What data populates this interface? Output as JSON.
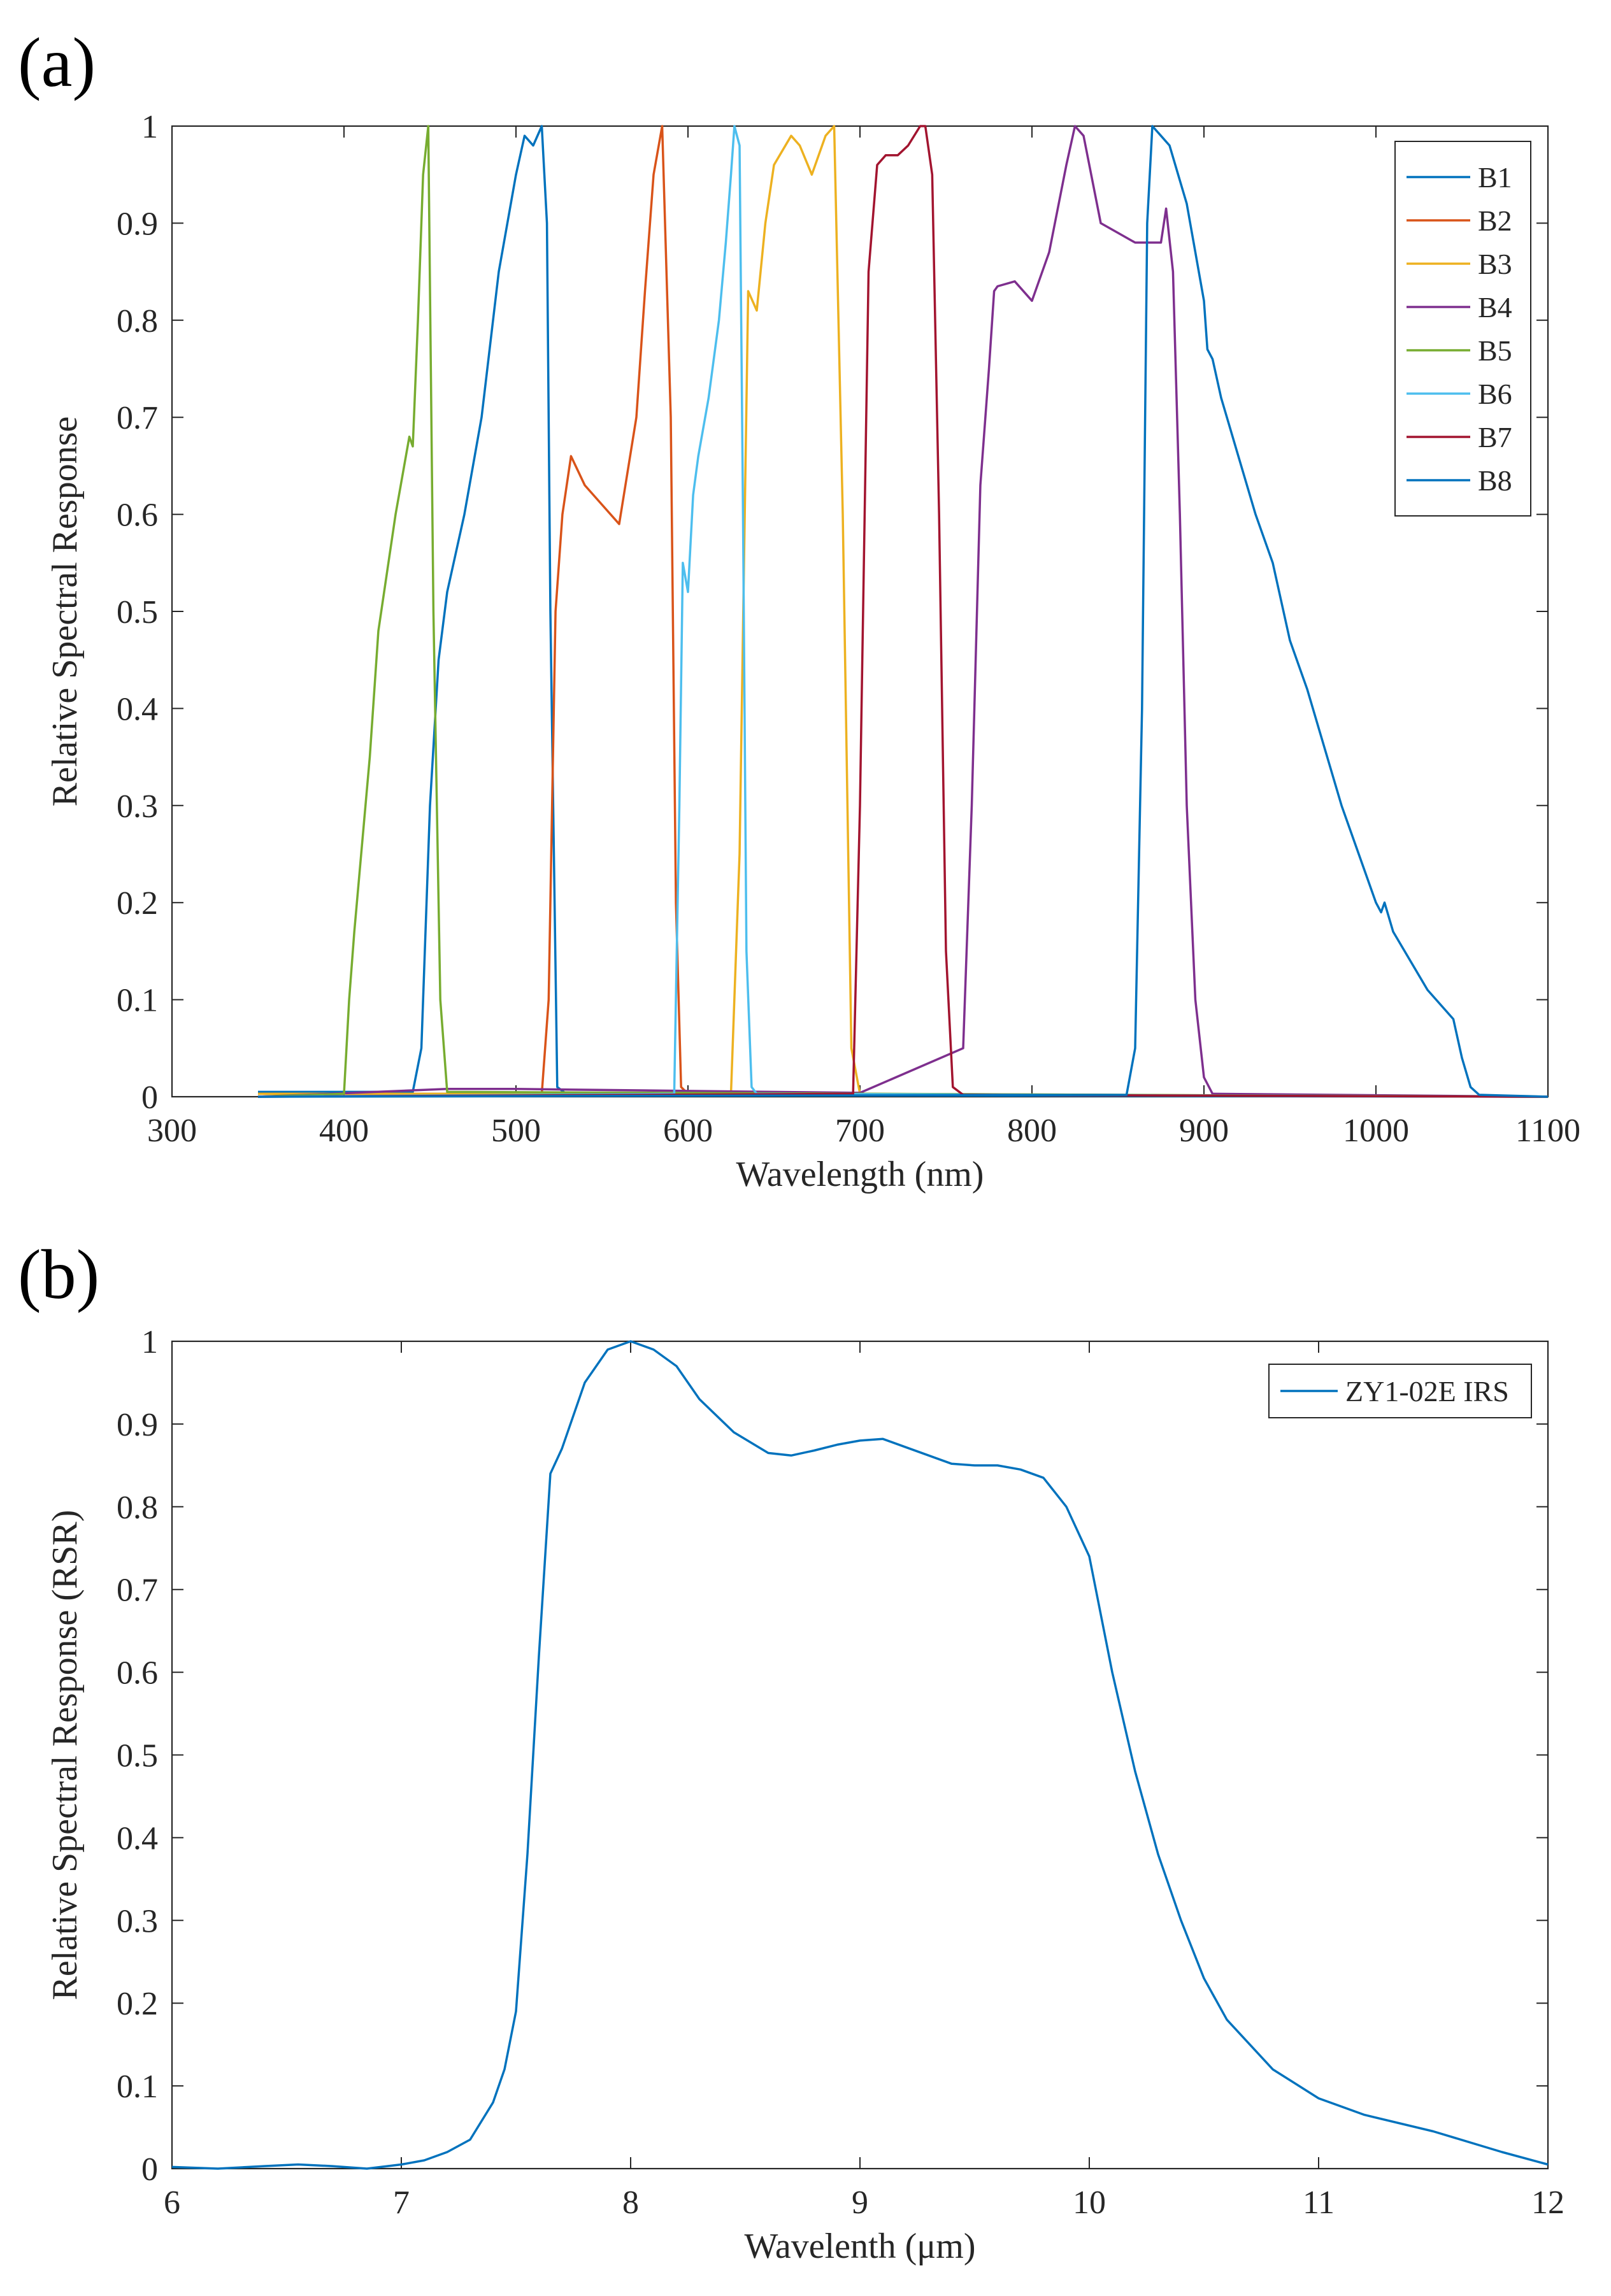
{
  "figure": {
    "panels": [
      {
        "label": "(a)"
      },
      {
        "label": "(b)"
      }
    ]
  },
  "chart_data": [
    {
      "type": "line",
      "panel": "(a)",
      "title": "",
      "xlabel": "Wavelength (nm)",
      "ylabel": "Relative Spectral Response",
      "xlim": [
        300,
        1100
      ],
      "ylim": [
        0,
        1
      ],
      "xticks": [
        300,
        400,
        500,
        600,
        700,
        800,
        900,
        1000,
        1100
      ],
      "xtick_labels": [
        "300",
        "400",
        "500",
        "600",
        "700",
        "800",
        "900",
        "1000",
        "1100"
      ],
      "yticks": [
        0,
        0.1,
        0.2,
        0.3,
        0.4,
        0.5,
        0.6,
        0.7,
        0.8,
        0.9,
        1
      ],
      "ytick_labels": [
        "0",
        "0.1",
        "0.2",
        "0.3",
        "0.4",
        "0.5",
        "0.6",
        "0.7",
        "0.8",
        "0.9",
        "1"
      ],
      "grid": false,
      "legend_position": "top-right",
      "series": [
        {
          "name": "B1",
          "color": "#0072BD",
          "x": [
            350,
            440,
            445,
            450,
            455,
            460,
            470,
            480,
            490,
            500,
            505,
            510,
            515,
            518,
            520,
            524,
            530,
            1100
          ],
          "y": [
            0.005,
            0.005,
            0.05,
            0.3,
            0.45,
            0.52,
            0.6,
            0.7,
            0.85,
            0.95,
            0.99,
            0.98,
            1.0,
            0.9,
            0.5,
            0.01,
            0.002,
            0.0
          ]
        },
        {
          "name": "B2",
          "color": "#D95319",
          "x": [
            350,
            515,
            519,
            523,
            527,
            532,
            540,
            550,
            560,
            570,
            575,
            580,
            585,
            590,
            593,
            596,
            600,
            1100
          ],
          "y": [
            0.003,
            0.003,
            0.1,
            0.5,
            0.6,
            0.66,
            0.63,
            0.61,
            0.59,
            0.7,
            0.83,
            0.95,
            1.0,
            0.7,
            0.2,
            0.01,
            0.003,
            0.0
          ]
        },
        {
          "name": "B3",
          "color": "#EDB120",
          "x": [
            350,
            625,
            630,
            635,
            640,
            645,
            650,
            660,
            665,
            672,
            680,
            685,
            690,
            695,
            700,
            1100
          ],
          "y": [
            0.003,
            0.003,
            0.25,
            0.83,
            0.81,
            0.9,
            0.96,
            0.99,
            0.98,
            0.95,
            0.99,
            1.0,
            0.6,
            0.05,
            0.003,
            0.0
          ]
        },
        {
          "name": "B4",
          "color": "#7E2F8E",
          "x": [
            350,
            460,
            500,
            600,
            700,
            760,
            765,
            770,
            775,
            778,
            780,
            790,
            800,
            810,
            820,
            825,
            830,
            840,
            850,
            860,
            870,
            875,
            878,
            882,
            886,
            890,
            895,
            900,
            905,
            1100
          ],
          "y": [
            0.0,
            0.008,
            0.008,
            0.006,
            0.004,
            0.05,
            0.3,
            0.63,
            0.75,
            0.83,
            0.835,
            0.84,
            0.82,
            0.87,
            0.96,
            1.0,
            0.99,
            0.9,
            0.89,
            0.88,
            0.88,
            0.88,
            0.915,
            0.85,
            0.6,
            0.3,
            0.1,
            0.02,
            0.003,
            0.0
          ]
        },
        {
          "name": "B5",
          "color": "#77AC30",
          "x": [
            350,
            400,
            403,
            406,
            410,
            415,
            420,
            430,
            438,
            440,
            443,
            446,
            449,
            452,
            456,
            460,
            1100
          ],
          "y": [
            0.0,
            0.003,
            0.1,
            0.17,
            0.25,
            0.35,
            0.48,
            0.6,
            0.68,
            0.67,
            0.8,
            0.95,
            1.0,
            0.5,
            0.1,
            0.005,
            0.0
          ]
        },
        {
          "name": "B6",
          "color": "#4DBEEE",
          "x": [
            350,
            592,
            595,
            597,
            600,
            603,
            606,
            612,
            618,
            622,
            625,
            627,
            630,
            632,
            634,
            637,
            640,
            1100
          ],
          "y": [
            0.0,
            0.003,
            0.3,
            0.55,
            0.52,
            0.62,
            0.66,
            0.72,
            0.8,
            0.88,
            0.95,
            1.0,
            0.98,
            0.6,
            0.15,
            0.01,
            0.003,
            0.0
          ]
        },
        {
          "name": "B7",
          "color": "#A2142F",
          "x": [
            350,
            696,
            700,
            705,
            710,
            715,
            722,
            728,
            735,
            738,
            742,
            746,
            750,
            754,
            760,
            1100
          ],
          "y": [
            0.0,
            0.003,
            0.3,
            0.85,
            0.96,
            0.97,
            0.97,
            0.98,
            1.0,
            1.0,
            0.95,
            0.6,
            0.15,
            0.01,
            0.002,
            0.0
          ]
        },
        {
          "name": "B8",
          "color": "#0072BD",
          "x": [
            350,
            855,
            860,
            864,
            867,
            870,
            875,
            880,
            885,
            890,
            895,
            900,
            902,
            905,
            910,
            920,
            930,
            940,
            950,
            960,
            970,
            980,
            990,
            1000,
            1003,
            1005,
            1010,
            1020,
            1030,
            1045,
            1050,
            1055,
            1060,
            1100
          ],
          "y": [
            0.0,
            0.002,
            0.05,
            0.4,
            0.9,
            1.0,
            0.99,
            0.98,
            0.95,
            0.92,
            0.87,
            0.82,
            0.77,
            0.76,
            0.72,
            0.66,
            0.6,
            0.55,
            0.47,
            0.42,
            0.36,
            0.3,
            0.25,
            0.2,
            0.19,
            0.2,
            0.17,
            0.14,
            0.11,
            0.08,
            0.04,
            0.01,
            0.002,
            0.0
          ]
        }
      ]
    },
    {
      "type": "line",
      "panel": "(b)",
      "title": "",
      "xlabel": "Wavelenth (μm)",
      "ylabel": "Relative Spectral Response (RSR)",
      "xlim": [
        6,
        12
      ],
      "ylim": [
        0,
        1
      ],
      "xticks": [
        6,
        7,
        8,
        9,
        10,
        11,
        12
      ],
      "xtick_labels": [
        "6",
        "7",
        "8",
        "9",
        "10",
        "11",
        "12"
      ],
      "yticks": [
        0,
        0.1,
        0.2,
        0.3,
        0.4,
        0.5,
        0.6,
        0.7,
        0.8,
        0.9,
        1
      ],
      "ytick_labels": [
        "0",
        "0.1",
        "0.2",
        "0.3",
        "0.4",
        "0.5",
        "0.6",
        "0.7",
        "0.8",
        "0.9",
        "1"
      ],
      "grid": false,
      "legend_position": "top-right",
      "series": [
        {
          "name": "ZY1-02E IRS",
          "color": "#0072BD",
          "x": [
            6.0,
            6.2,
            6.4,
            6.55,
            6.7,
            6.85,
            7.0,
            7.1,
            7.2,
            7.3,
            7.4,
            7.45,
            7.5,
            7.55,
            7.6,
            7.65,
            7.7,
            7.8,
            7.9,
            8.0,
            8.1,
            8.2,
            8.3,
            8.45,
            8.6,
            8.7,
            8.8,
            8.9,
            9.0,
            9.1,
            9.2,
            9.3,
            9.4,
            9.5,
            9.6,
            9.7,
            9.8,
            9.9,
            10.0,
            10.1,
            10.2,
            10.3,
            10.4,
            10.5,
            10.6,
            10.8,
            11.0,
            11.2,
            11.5,
            11.8,
            12.0
          ],
          "y": [
            0.002,
            0.0,
            0.003,
            0.005,
            0.003,
            0.0,
            0.005,
            0.01,
            0.02,
            0.035,
            0.08,
            0.12,
            0.19,
            0.38,
            0.62,
            0.84,
            0.87,
            0.95,
            0.99,
            1.0,
            0.99,
            0.97,
            0.93,
            0.89,
            0.865,
            0.862,
            0.868,
            0.875,
            0.88,
            0.882,
            0.872,
            0.862,
            0.852,
            0.85,
            0.85,
            0.845,
            0.835,
            0.8,
            0.74,
            0.6,
            0.48,
            0.38,
            0.3,
            0.23,
            0.18,
            0.12,
            0.085,
            0.065,
            0.045,
            0.02,
            0.005
          ]
        }
      ]
    }
  ]
}
